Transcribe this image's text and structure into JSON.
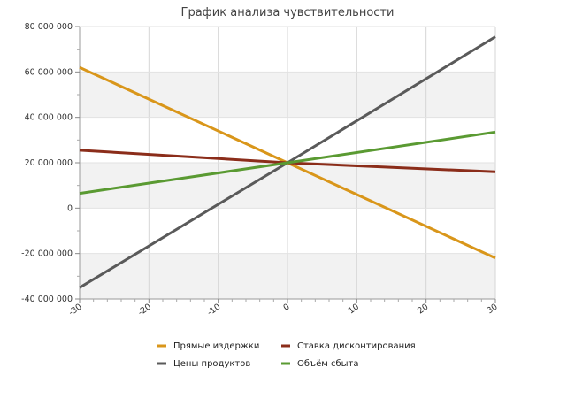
{
  "chart_data": {
    "type": "line",
    "title": "График анализа чувствительности",
    "xlabel": "",
    "ylabel": "",
    "xlim": [
      -30,
      30
    ],
    "ylim": [
      -40000000,
      80000000
    ],
    "x_ticks": [
      -30,
      -20,
      -10,
      0,
      10,
      20,
      30
    ],
    "x_tick_labels": [
      "-30",
      "-20",
      "-10",
      "0",
      "10",
      "20",
      "30"
    ],
    "y_ticks": [
      -40000000,
      -20000000,
      0,
      20000000,
      40000000,
      60000000,
      80000000
    ],
    "y_tick_labels": [
      "-40 000 000",
      "-20 000 000",
      "0",
      "20 000 000",
      "40 000 000",
      "60 000 000",
      "80 000 000"
    ],
    "grid": true,
    "legend_position": "bottom",
    "x": [
      -30,
      0,
      30
    ],
    "series": [
      {
        "name": "Прямые издержки",
        "color": "#d9961a",
        "values": [
          62000000,
          20000000,
          -22000000
        ]
      },
      {
        "name": "Ставка дисконтирования",
        "color": "#8b2d1a",
        "values": [
          25500000,
          20000000,
          16000000
        ]
      },
      {
        "name": "Цены продуктов",
        "color": "#5a5a5a",
        "values": [
          -35000000,
          20000000,
          75500000
        ]
      },
      {
        "name": "Объём сбыта",
        "color": "#5a9a32",
        "values": [
          6500000,
          20000000,
          33500000
        ]
      }
    ]
  }
}
